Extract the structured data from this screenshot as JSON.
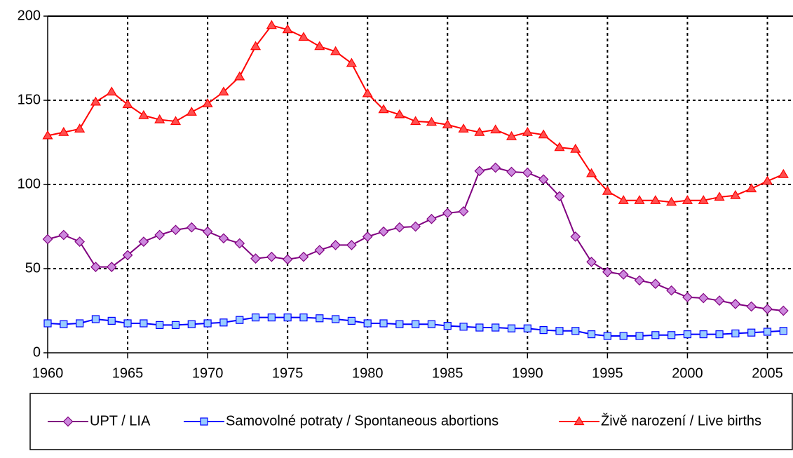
{
  "chart_data": {
    "type": "line",
    "x": [
      1960,
      1961,
      1962,
      1963,
      1964,
      1965,
      1966,
      1967,
      1968,
      1969,
      1970,
      1971,
      1972,
      1973,
      1974,
      1975,
      1976,
      1977,
      1978,
      1979,
      1980,
      1981,
      1982,
      1983,
      1984,
      1985,
      1986,
      1987,
      1988,
      1989,
      1990,
      1991,
      1992,
      1993,
      1994,
      1995,
      1996,
      1997,
      1998,
      1999,
      2000,
      2001,
      2002,
      2003,
      2004,
      2005,
      2006
    ],
    "series": [
      {
        "name": "UPT / LIA",
        "color": "#800080",
        "marker": "diamond",
        "fill": "#cc88dd",
        "values": [
          67.5,
          70,
          66,
          51,
          51,
          58,
          66,
          70,
          73,
          74.5,
          72,
          68,
          65,
          56,
          57,
          55.5,
          57,
          61,
          64,
          64,
          69,
          72,
          74.5,
          75,
          79.5,
          83,
          84,
          108,
          110,
          107.5,
          107,
          103,
          93,
          69,
          54,
          48,
          46.5,
          43,
          41,
          37,
          33,
          32.5,
          31,
          29,
          27.5,
          26,
          25
        ]
      },
      {
        "name": "Samovolné potraty / Spontaneous abortions",
        "color": "#0000ff",
        "marker": "square",
        "fill": "#99ccff",
        "values": [
          17.5,
          17,
          17.5,
          20,
          19,
          17.5,
          17.5,
          16.5,
          16.5,
          17,
          17.5,
          18,
          19.5,
          21,
          21,
          21,
          21,
          20.5,
          20,
          19,
          17.5,
          17.5,
          17,
          17,
          17,
          16,
          15.5,
          15,
          15,
          14.5,
          14.5,
          13.5,
          13,
          13,
          11,
          10,
          10,
          10,
          10.5,
          10.5,
          11,
          11,
          11,
          11.5,
          12,
          12.5,
          13
        ]
      },
      {
        "name": "Živě narození / Live births",
        "color": "#ff0000",
        "marker": "triangle",
        "fill": "#ff5050",
        "values": [
          129,
          131,
          133,
          149,
          155,
          147.5,
          141,
          138.5,
          137.5,
          143,
          148,
          155,
          164,
          182,
          194.5,
          192,
          187.5,
          182,
          179,
          172,
          154,
          144.5,
          141.5,
          137.5,
          137,
          135.5,
          133,
          131,
          132.5,
          128.5,
          131,
          129.5,
          122,
          121,
          106.5,
          96,
          90.5,
          90.5,
          90.5,
          89.5,
          90.5,
          90.5,
          92.5,
          93.5,
          97.5,
          102,
          106
        ]
      }
    ],
    "xlim": [
      1960,
      2006.6
    ],
    "xticks": [
      1960,
      1965,
      1970,
      1975,
      1980,
      1985,
      1990,
      1995,
      2000,
      2005
    ],
    "ylim": [
      0,
      200
    ],
    "yticks": [
      0,
      50,
      100,
      150,
      200
    ],
    "grid": true
  }
}
